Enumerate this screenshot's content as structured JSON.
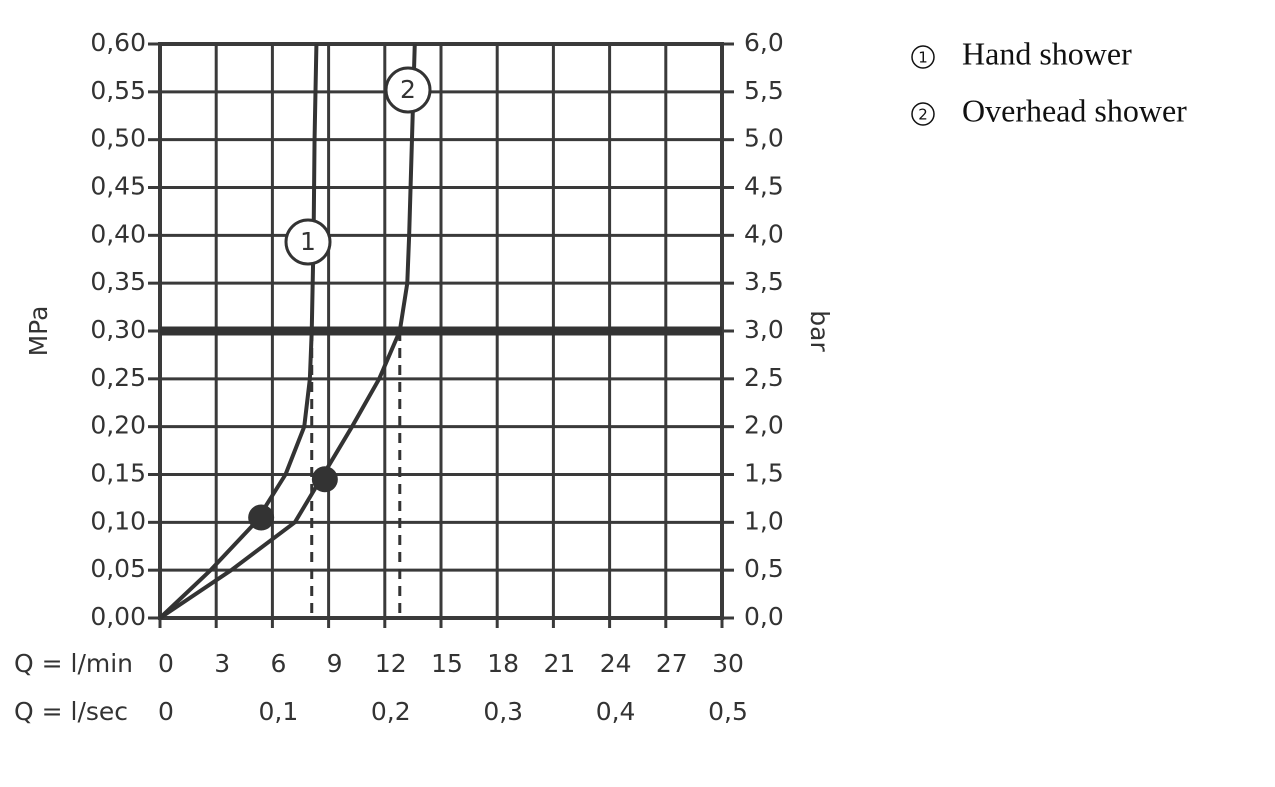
{
  "chart_data": {
    "type": "line",
    "xlabel": "Q = l/min",
    "x2label": "Q = l/sec",
    "ylabel": "MPa",
    "y2label": "bar",
    "xlim": [
      0,
      30
    ],
    "xticks": [
      0,
      3,
      6,
      9,
      12,
      15,
      18,
      21,
      24,
      27,
      30
    ],
    "x2lim": [
      0,
      0.5
    ],
    "x2ticks": [
      0,
      {
        "value": 0.1,
        "label": "0,1"
      },
      {
        "value": 0.2,
        "label": "0,2"
      },
      {
        "value": 0.3,
        "label": "0,3"
      },
      {
        "value": 0.4,
        "label": "0,4"
      },
      {
        "value": 0.5,
        "label": "0,5"
      }
    ],
    "ylim": [
      0,
      0.6
    ],
    "yticks": [
      {
        "value": 0,
        "label": "0,00"
      },
      {
        "value": 0.05,
        "label": "0,05"
      },
      {
        "value": 0.1,
        "label": "0,10"
      },
      {
        "value": 0.15,
        "label": "0,15"
      },
      {
        "value": 0.2,
        "label": "0,20"
      },
      {
        "value": 0.25,
        "label": "0,25"
      },
      {
        "value": 0.3,
        "label": "0,30"
      },
      {
        "value": 0.35,
        "label": "0,35"
      },
      {
        "value": 0.4,
        "label": "0,40"
      },
      {
        "value": 0.45,
        "label": "0,45"
      },
      {
        "value": 0.5,
        "label": "0,50"
      },
      {
        "value": 0.55,
        "label": "0,55"
      },
      {
        "value": 0.6,
        "label": "0,60"
      }
    ],
    "y2lim": [
      0,
      6
    ],
    "y2ticks": [
      {
        "value": 0,
        "label": "0,0"
      },
      {
        "value": 0.5,
        "label": "0,5"
      },
      {
        "value": 1,
        "label": "1,0"
      },
      {
        "value": 1.5,
        "label": "1,5"
      },
      {
        "value": 2,
        "label": "2,0"
      },
      {
        "value": 2.5,
        "label": "2,5"
      },
      {
        "value": 3,
        "label": "3,0"
      },
      {
        "value": 3.5,
        "label": "3,5"
      },
      {
        "value": 4,
        "label": "4,0"
      },
      {
        "value": 4.5,
        "label": "4,5"
      },
      {
        "value": 5,
        "label": "5,0"
      },
      {
        "value": 5.5,
        "label": "5,5"
      },
      {
        "value": 6,
        "label": "6,0"
      }
    ],
    "grid": true,
    "reference_y": 0.3,
    "series": [
      {
        "name": "Hand shower",
        "label": "1",
        "color": "#333333",
        "x": [
          0,
          2.7,
          5.1,
          6.7,
          7.7,
          8.0,
          8.1,
          8.2,
          8.25,
          8.35
        ],
        "values": [
          0,
          0.05,
          0.1,
          0.15,
          0.2,
          0.25,
          0.3,
          0.4,
          0.5,
          0.6
        ],
        "point": {
          "x": 5.4,
          "y": 0.105
        }
      },
      {
        "name": "Overhead shower",
        "label": "2",
        "color": "#333333",
        "x": [
          0,
          3.8,
          7.2,
          10.25,
          11.7,
          12.8,
          13.2,
          13.3,
          13.45,
          13.6
        ],
        "values": [
          0,
          0.05,
          0.1,
          0.2,
          0.25,
          0.3,
          0.35,
          0.4,
          0.5,
          0.6
        ],
        "point": {
          "x": 8.8,
          "y": 0.145
        }
      }
    ]
  }
}
